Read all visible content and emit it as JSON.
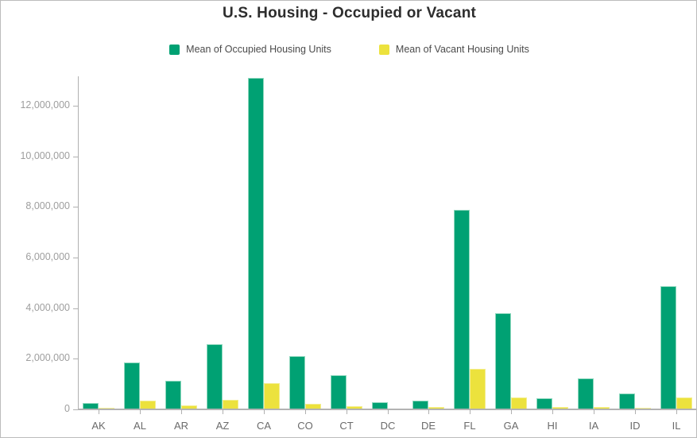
{
  "header": {
    "title": "U.S. Housing - Occupied or Vacant"
  },
  "legend": [
    {
      "label": "Mean of Occupied Housing Units",
      "color": "#00a173"
    },
    {
      "label": "Mean of Vacant Housing Units",
      "color": "#ece23d"
    }
  ],
  "axis": {
    "line_color": "#b0b0b0",
    "ytick_label_color": "#9e9e9e",
    "xtick_label_color": "#6b6b6b"
  },
  "chart_data": {
    "type": "bar",
    "title": "U.S. Housing - Occupied or Vacant",
    "xlabel": "",
    "ylabel": "",
    "grid": false,
    "legend_position": "top",
    "ylim": [
      0,
      13200000
    ],
    "yticks": [
      0,
      2000000,
      4000000,
      6000000,
      8000000,
      10000000,
      12000000
    ],
    "ytick_labels": [
      "0",
      "2,000,000",
      "4,000,000",
      "6,000,000",
      "8,000,000",
      "10,000,000",
      "12,000,000"
    ],
    "categories": [
      "AK",
      "AL",
      "AR",
      "AZ",
      "CA",
      "CO",
      "CT",
      "DC",
      "DE",
      "FL",
      "GA",
      "HI",
      "IA",
      "ID",
      "IL"
    ],
    "series": [
      {
        "name": "Mean of Occupied Housing Units",
        "color": "#00a173",
        "border_color": "#8fd8be",
        "values": [
          250000,
          1850000,
          1140000,
          2580000,
          13080000,
          2110000,
          1360000,
          270000,
          345000,
          7880000,
          3800000,
          455000,
          1240000,
          630000,
          4870000
        ]
      },
      {
        "name": "Mean of Vacant Housing Units",
        "color": "#ece23d",
        "border_color": "#f3ed8e",
        "values": [
          70000,
          355000,
          170000,
          370000,
          1050000,
          205000,
          130000,
          40000,
          85000,
          1600000,
          480000,
          80000,
          105000,
          60000,
          460000
        ]
      }
    ]
  }
}
